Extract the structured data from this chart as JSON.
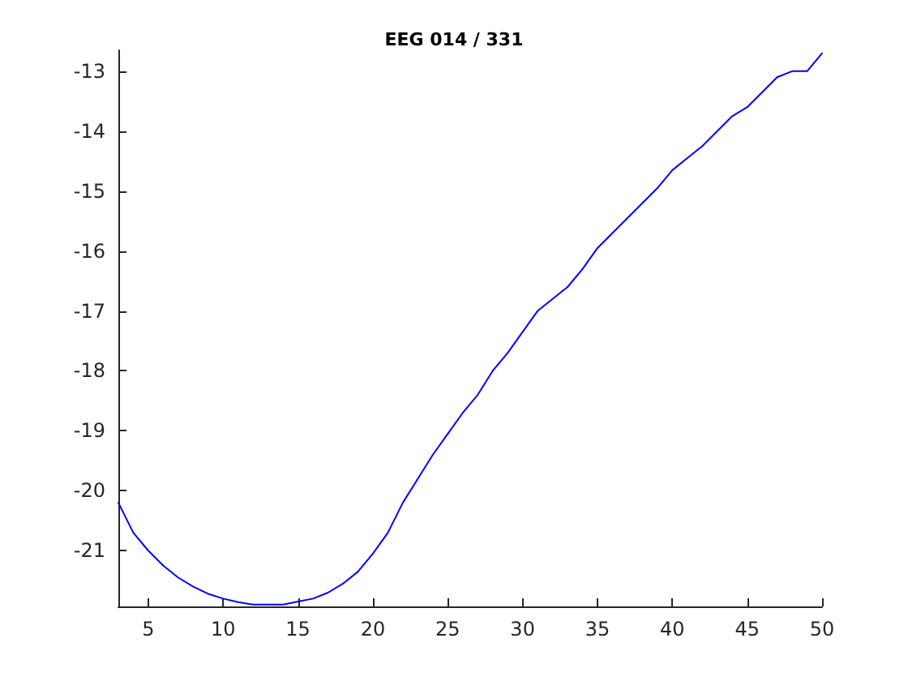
{
  "chart_data": {
    "type": "line",
    "title": "EEG 014 / 331",
    "x": [
      3,
      4,
      5,
      6,
      7,
      8,
      9,
      10,
      11,
      12,
      13,
      14,
      15,
      16,
      17,
      18,
      19,
      20,
      21,
      22,
      23,
      24,
      25,
      26,
      27,
      28,
      29,
      30,
      31,
      32,
      33,
      34,
      35,
      36,
      37,
      38,
      39,
      40,
      41,
      42,
      43,
      44,
      45,
      46,
      47,
      48,
      49,
      49.5,
      50
    ],
    "series": [
      {
        "color": "#0000ff",
        "values": [
          -20.2,
          -20.7,
          -21.0,
          -21.25,
          -21.45,
          -21.6,
          -21.72,
          -21.8,
          -21.86,
          -21.9,
          -21.9,
          -21.9,
          -21.85,
          -21.8,
          -21.7,
          -21.55,
          -21.35,
          -21.05,
          -20.7,
          -20.2,
          -19.8,
          -19.4,
          -19.05,
          -18.7,
          -18.4,
          -18.0,
          -17.7,
          -17.35,
          -17.0,
          -16.8,
          -16.6,
          -16.3,
          -15.95,
          -15.7,
          -15.45,
          -15.2,
          -14.95,
          -14.65,
          -14.45,
          -14.25,
          -14.0,
          -13.75,
          -13.6,
          -13.35,
          -13.1,
          -13.0,
          -13.0,
          -12.85,
          -12.7
        ]
      }
    ],
    "xlim": [
      3,
      50
    ],
    "xticks": [
      5,
      10,
      15,
      20,
      25,
      30,
      35,
      40,
      45,
      50
    ],
    "ylim": [
      -21.93,
      -12.65
    ],
    "yticks": [
      -21,
      -20,
      -19,
      -18,
      -17,
      -16,
      -15,
      -14,
      -13
    ],
    "grid": false,
    "marker": "none",
    "line_style": "solid"
  }
}
